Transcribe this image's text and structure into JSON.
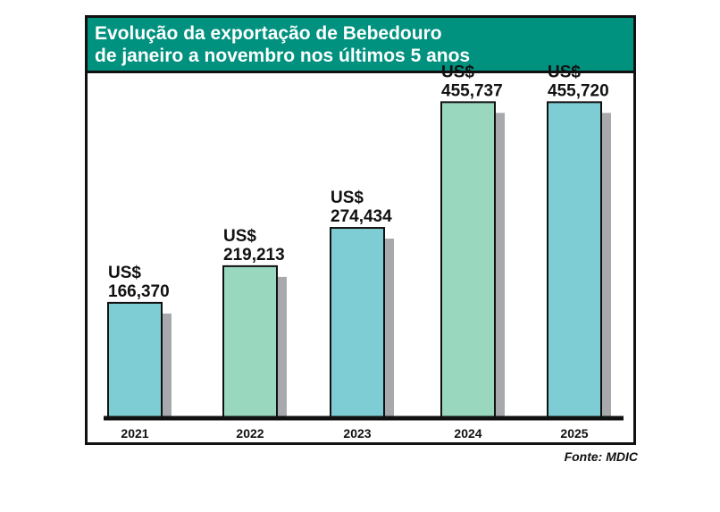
{
  "chart_data": {
    "type": "bar",
    "title": "Evolução da exportação de Bebedouro",
    "subtitle": "de janeiro a novembro nos últimos 5 anos",
    "categories": [
      "2021",
      "2022",
      "2023",
      "2024",
      "2025"
    ],
    "values": [
      166370,
      219213,
      274434,
      455737,
      455720
    ],
    "value_labels": [
      [
        "US$",
        "166,370"
      ],
      [
        "US$",
        "219,213"
      ],
      [
        "US$",
        "274,434"
      ],
      [
        "US$",
        "455,737"
      ],
      [
        "US$",
        "455,720"
      ]
    ],
    "bar_colors": [
      "#7fcdd4",
      "#9ad7bf",
      "#7fcdd4",
      "#9ad7bf",
      "#7fcdd4"
    ],
    "header_color": "#00917f",
    "ylim": [
      0,
      500000
    ],
    "grid": false,
    "xlabel": "",
    "ylabel": ""
  },
  "source": "Fonte: MDIC"
}
